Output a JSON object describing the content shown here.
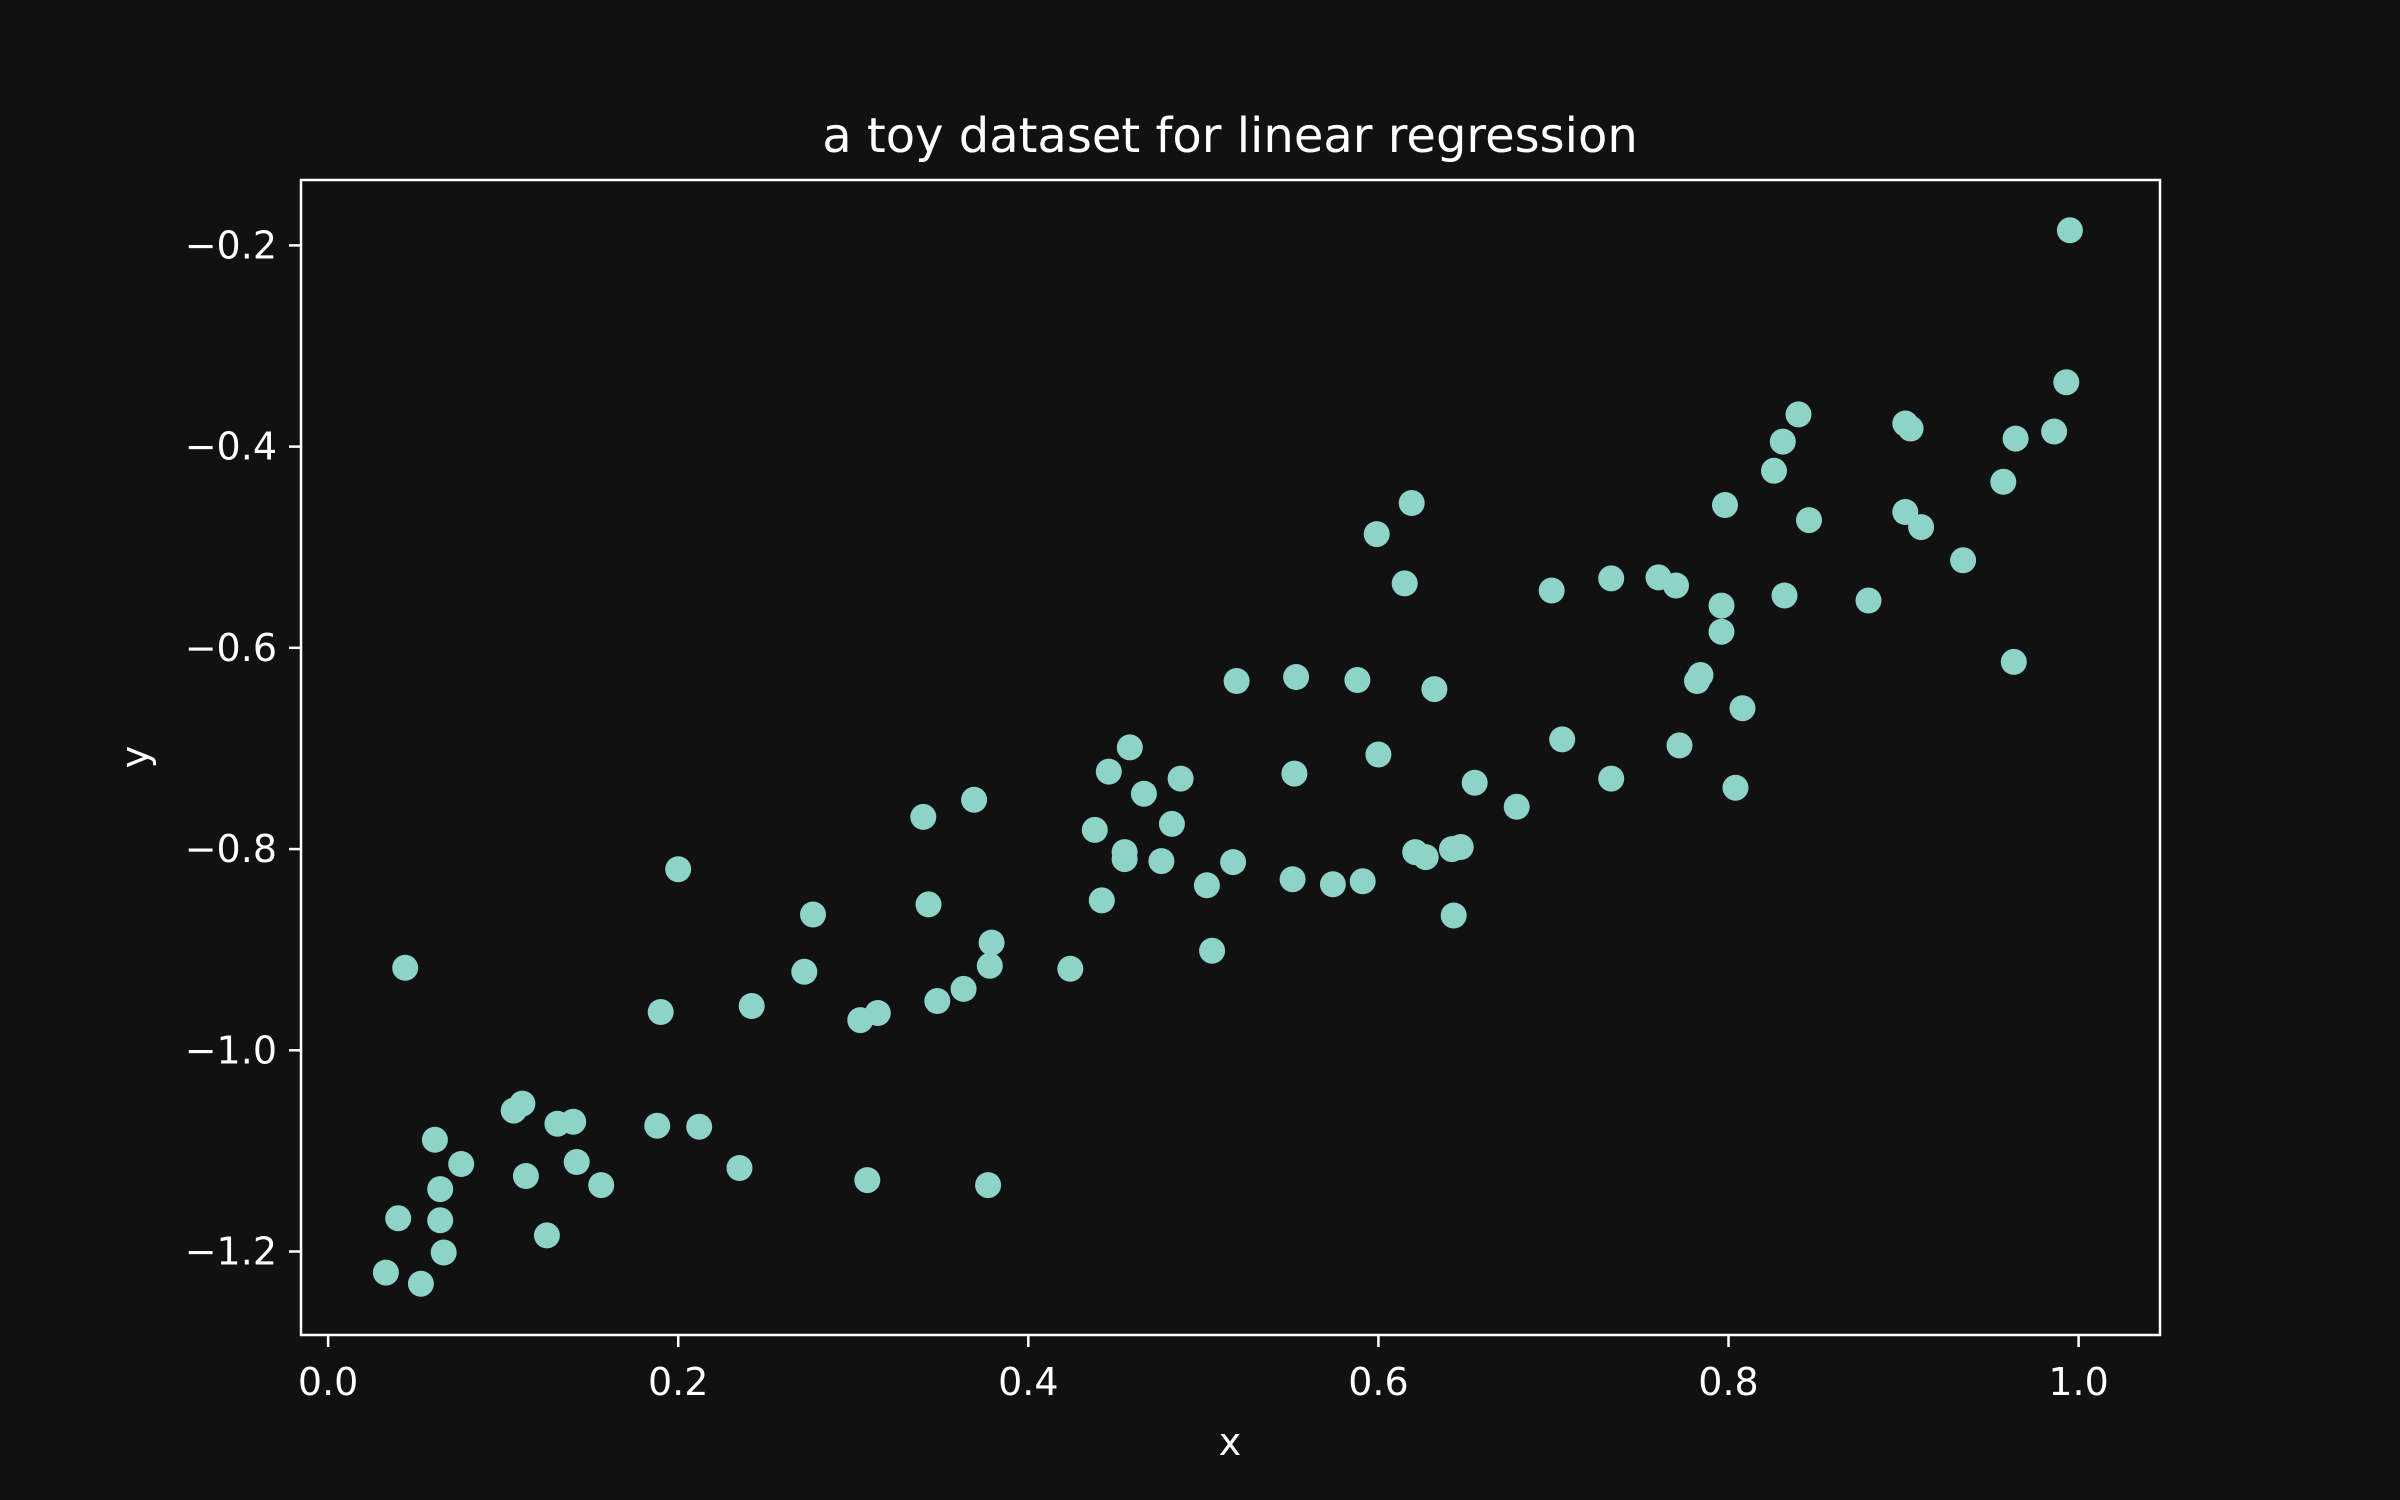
{
  "chart_data": {
    "type": "scatter",
    "title": "a toy dataset for linear regression",
    "xlabel": "x",
    "ylabel": "y",
    "xlim": [
      -0.0155,
      1.0465
    ],
    "ylim": [
      -1.283,
      -0.135
    ],
    "xticks": [
      0.0,
      0.2,
      0.4,
      0.6,
      0.8,
      1.0
    ],
    "xtick_labels": [
      "0.0",
      "0.2",
      "0.4",
      "0.6",
      "0.8",
      "1.0"
    ],
    "yticks": [
      -1.2,
      -1.0,
      -0.8,
      -0.6,
      -0.4,
      -0.2
    ],
    "ytick_labels": [
      "−1.2",
      "−1.0",
      "−0.8",
      "−0.6",
      "−0.4",
      "−0.2"
    ],
    "grid": false,
    "colors": {
      "background": "#111111",
      "points": "#8dd3c7",
      "axes": "#ffffff",
      "text": "#ffffff"
    },
    "series": [
      {
        "x": [
          0.995,
          0.993,
          0.986,
          0.964,
          0.957,
          0.963,
          0.934,
          0.91,
          0.904,
          0.901,
          0.901,
          0.846,
          0.84,
          0.831,
          0.826,
          0.832,
          0.88,
          0.798,
          0.796,
          0.796,
          0.784,
          0.782,
          0.808,
          0.804,
          0.77,
          0.772,
          0.76,
          0.733,
          0.733,
          0.699,
          0.705,
          0.679,
          0.655,
          0.647,
          0.642,
          0.643,
          0.627,
          0.621,
          0.632,
          0.619,
          0.615,
          0.599,
          0.6,
          0.588,
          0.591,
          0.574,
          0.553,
          0.552,
          0.551,
          0.519,
          0.517,
          0.505,
          0.502,
          0.487,
          0.482,
          0.476,
          0.466,
          0.458,
          0.455,
          0.455,
          0.446,
          0.442,
          0.438,
          0.424,
          0.379,
          0.378,
          0.377,
          0.369,
          0.363,
          0.348,
          0.343,
          0.34,
          0.314,
          0.308,
          0.304,
          0.277,
          0.272,
          0.242,
          0.235,
          0.212,
          0.2,
          0.19,
          0.188,
          0.156,
          0.142,
          0.14,
          0.131,
          0.125,
          0.113,
          0.111,
          0.106,
          0.076,
          0.066,
          0.064,
          0.064,
          0.061,
          0.053,
          0.044,
          0.04,
          0.033
        ],
        "y": [
          -0.185,
          -0.336,
          -0.385,
          -0.392,
          -0.435,
          -0.614,
          -0.513,
          -0.48,
          -0.382,
          -0.377,
          -0.465,
          -0.473,
          -0.368,
          -0.395,
          -0.424,
          -0.548,
          -0.553,
          -0.458,
          -0.558,
          -0.584,
          -0.627,
          -0.633,
          -0.66,
          -0.739,
          -0.538,
          -0.697,
          -0.53,
          -0.531,
          -0.73,
          -0.543,
          -0.691,
          -0.758,
          -0.734,
          -0.798,
          -0.8,
          -0.866,
          -0.808,
          -0.803,
          -0.641,
          -0.456,
          -0.536,
          -0.487,
          -0.706,
          -0.632,
          -0.832,
          -0.835,
          -0.629,
          -0.725,
          -0.83,
          -0.633,
          -0.813,
          -0.901,
          -0.836,
          -0.73,
          -0.775,
          -0.812,
          -0.745,
          -0.699,
          -0.803,
          -0.81,
          -0.723,
          -0.851,
          -0.781,
          -0.919,
          -0.893,
          -0.916,
          -1.134,
          -0.751,
          -0.939,
          -0.951,
          -0.855,
          -0.768,
          -0.963,
          -1.129,
          -0.97,
          -0.865,
          -0.922,
          -0.956,
          -1.117,
          -1.076,
          -0.82,
          -0.962,
          -1.075,
          -1.134,
          -1.111,
          -1.071,
          -1.073,
          -1.184,
          -1.125,
          -1.053,
          -1.06,
          -1.113,
          -1.201,
          -1.138,
          -1.169,
          -1.089,
          -1.232,
          -0.918,
          -1.167,
          -1.221
        ]
      }
    ]
  }
}
